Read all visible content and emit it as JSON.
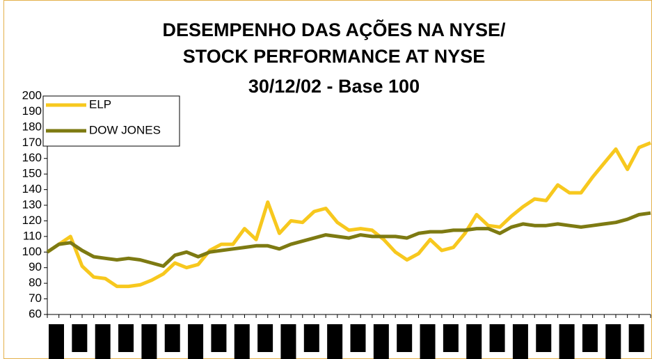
{
  "chart_data": {
    "type": "line",
    "title": [
      "DESEMPENHO DAS AÇÕES NA NYSE/",
      "STOCK PERFORMANCE AT NYSE",
      "30/12/02 - Base 100"
    ],
    "categories": [
      null,
      null,
      null,
      null,
      null,
      null,
      null,
      null,
      null,
      null,
      null,
      null,
      null,
      null,
      null,
      null,
      null,
      null,
      null,
      null,
      null,
      null,
      null,
      null,
      null,
      null,
      null,
      null,
      null,
      null,
      null,
      null,
      null,
      null,
      null,
      null,
      null,
      null,
      null,
      null,
      null,
      null,
      null,
      null,
      null,
      null,
      null,
      null,
      null,
      null,
      null,
      null,
      null
    ],
    "series": [
      {
        "name": "ELP",
        "color": "#f7c81e",
        "values": [
          100,
          105,
          110,
          91,
          84,
          83,
          78,
          78,
          79,
          82,
          86,
          93,
          90,
          92,
          101,
          105,
          105,
          115,
          108,
          132,
          112,
          120,
          119,
          126,
          128,
          119,
          114,
          115,
          114,
          108,
          100,
          95,
          99,
          108,
          101,
          103,
          112,
          124,
          117,
          116,
          123,
          129,
          134,
          133,
          143,
          138,
          138,
          148,
          157,
          166,
          153,
          167,
          170
        ]
      },
      {
        "name": "DOW JONES",
        "color": "#7d7a12",
        "values": [
          100,
          105,
          106,
          101,
          97,
          96,
          95,
          96,
          95,
          93,
          91,
          98,
          100,
          97,
          100,
          101,
          102,
          103,
          104,
          104,
          102,
          105,
          107,
          109,
          111,
          110,
          109,
          111,
          110,
          110,
          110,
          109,
          112,
          113,
          113,
          114,
          114,
          115,
          115,
          112,
          116,
          118,
          117,
          117,
          118,
          117,
          116,
          117,
          118,
          119,
          121,
          124,
          125
        ]
      }
    ],
    "ylim": [
      60,
      200
    ],
    "yticks": [
      60,
      70,
      80,
      90,
      100,
      110,
      120,
      130,
      140,
      150,
      160,
      170,
      180,
      190,
      200
    ],
    "legend": "top-left"
  }
}
